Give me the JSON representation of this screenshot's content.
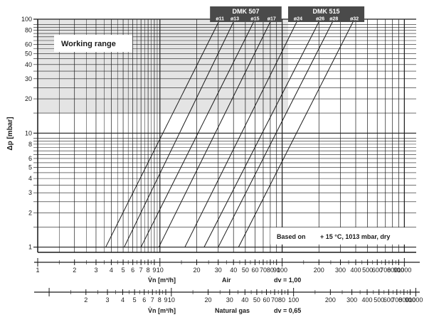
{
  "chart_data": {
    "type": "line",
    "xscale": "log",
    "yscale": "log",
    "xlim": [
      1,
      1250
    ],
    "ylim": [
      0.9,
      100
    ],
    "ylabel": "Δp [mbar]",
    "y_ticks": [
      "1",
      "2",
      "3",
      "4",
      "5",
      "6",
      "8",
      "10",
      "20",
      "30",
      "40",
      "50",
      "60",
      "80",
      "100"
    ],
    "working_range": {
      "label": "Working range",
      "ylim": [
        15,
        100
      ],
      "color": "#e4e4e4"
    },
    "groups": [
      {
        "name": "DMK 507",
        "series": [
          "ø11",
          "ø13",
          "ø15",
          "ø17"
        ]
      },
      {
        "name": "DMK 515",
        "series": [
          "ø24",
          "ø26",
          "ø28",
          "ø32"
        ]
      }
    ],
    "series": [
      {
        "name": "ø11",
        "points": [
          [
            3.6,
            1
          ],
          [
            31,
            100
          ]
        ]
      },
      {
        "name": "ø13",
        "points": [
          [
            5.1,
            1
          ],
          [
            41,
            100
          ]
        ]
      },
      {
        "name": "ø15",
        "points": [
          [
            7.0,
            1
          ],
          [
            60,
            100
          ]
        ]
      },
      {
        "name": "ø17",
        "points": [
          [
            9.8,
            1
          ],
          [
            82,
            100
          ]
        ]
      },
      {
        "name": "ø24",
        "points": [
          [
            16,
            1
          ],
          [
            135,
            100
          ]
        ]
      },
      {
        "name": "ø26",
        "points": [
          [
            23,
            1
          ],
          [
            205,
            100
          ]
        ]
      },
      {
        "name": "ø28",
        "points": [
          [
            30,
            1
          ],
          [
            265,
            100
          ]
        ]
      },
      {
        "name": "ø32",
        "points": [
          [
            44,
            1
          ],
          [
            390,
            100
          ]
        ]
      }
    ],
    "annotation": {
      "label": "Based on",
      "text": "+ 15 °C, 1013 mbar, dry"
    },
    "scales": [
      {
        "name": "Air",
        "factor": 1,
        "xlabel": "V̇n [m³/h]",
        "medium": "Air",
        "density": "dv = 1,00",
        "tick_labels": [
          "1",
          "2",
          "3",
          "4",
          "5",
          "6",
          "7",
          "8",
          "9",
          "10",
          "20",
          "30",
          "40",
          "50",
          "60",
          "70",
          "80",
          "90",
          "100",
          "200",
          "300",
          "400",
          "500",
          "600",
          "700",
          "800",
          "900",
          "1000"
        ],
        "tick_label_values": [
          1,
          2,
          3,
          4,
          5,
          6,
          7,
          8,
          9,
          10,
          20,
          30,
          40,
          50,
          60,
          70,
          80,
          90,
          100,
          200,
          300,
          400,
          500,
          600,
          700,
          800,
          900,
          1000
        ]
      },
      {
        "name": "Natural gas",
        "factor": 1.2403,
        "xlabel": "V̇n [m³/h]",
        "medium": "Natural gas",
        "density": "dv = 0,65",
        "tick_labels": [
          "2",
          "3",
          "4",
          "5",
          "6",
          "7",
          "8",
          "9",
          "10",
          "20",
          "30",
          "40",
          "50",
          "60",
          "70",
          "80",
          "100",
          "200",
          "300",
          "400",
          "500",
          "600",
          "700",
          "800",
          "900",
          "1000"
        ],
        "tick_label_values": [
          2,
          3,
          4,
          5,
          6,
          7,
          8,
          9,
          10,
          20,
          30,
          40,
          50,
          60,
          70,
          80,
          100,
          200,
          300,
          400,
          500,
          600,
          700,
          800,
          900,
          1000
        ]
      }
    ]
  }
}
